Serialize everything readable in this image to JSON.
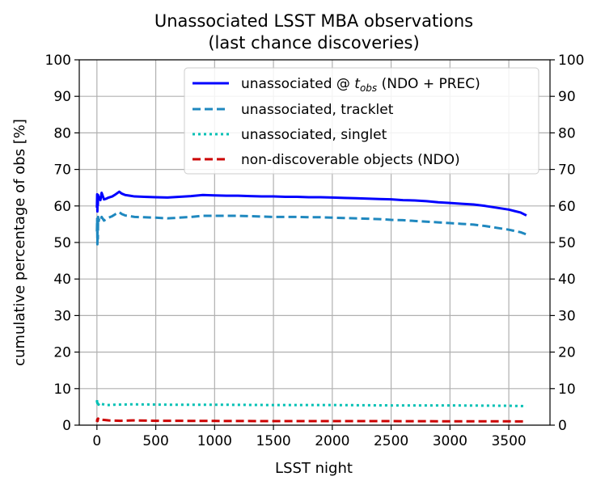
{
  "chart_data": {
    "type": "line",
    "title": "Unassociated LSST MBA observations",
    "subtitle": "(last chance discoveries)",
    "xlabel": "LSST night",
    "ylabel": "cumulative percentage of obs [%]",
    "xlim": [
      -150,
      3850
    ],
    "ylim": [
      0,
      100
    ],
    "xticks": [
      0,
      500,
      1000,
      1500,
      2000,
      2500,
      3000,
      3500
    ],
    "yticks": [
      0,
      10,
      20,
      30,
      40,
      50,
      60,
      70,
      80,
      90,
      100
    ],
    "grid": true,
    "legend_position": "top-right",
    "series": [
      {
        "name_parts": [
          "unassociated @ ",
          "t",
          "obs",
          " (NDO + PREC)"
        ],
        "style": "solid",
        "color": "#0000ff",
        "x": [
          0,
          2,
          4,
          6,
          8,
          10,
          14,
          20,
          30,
          40,
          60,
          80,
          100,
          130,
          160,
          190,
          210,
          240,
          280,
          320,
          400,
          500,
          600,
          700,
          800,
          900,
          1000,
          1100,
          1200,
          1300,
          1400,
          1500,
          1600,
          1700,
          1800,
          1900,
          2000,
          2100,
          2200,
          2300,
          2400,
          2500,
          2600,
          2700,
          2800,
          2900,
          3000,
          3100,
          3200,
          3300,
          3400,
          3500,
          3600,
          3650
        ],
        "y": [
          59.5,
          63.2,
          58.5,
          62.8,
          60.2,
          63.0,
          61.8,
          62.4,
          61.6,
          63.6,
          61.8,
          62.0,
          62.3,
          62.6,
          63.2,
          63.9,
          63.4,
          63.0,
          62.8,
          62.6,
          62.5,
          62.4,
          62.3,
          62.5,
          62.7,
          63.0,
          62.9,
          62.8,
          62.8,
          62.7,
          62.6,
          62.6,
          62.5,
          62.5,
          62.4,
          62.4,
          62.3,
          62.2,
          62.1,
          62.0,
          61.9,
          61.8,
          61.6,
          61.5,
          61.3,
          61.0,
          60.8,
          60.6,
          60.4,
          60.0,
          59.5,
          59.0,
          58.2,
          57.4
        ]
      },
      {
        "name": "unassociated, tracklet",
        "style": "dashed",
        "color": "#1f88bf",
        "x": [
          0,
          2,
          4,
          6,
          8,
          10,
          14,
          20,
          30,
          40,
          60,
          80,
          100,
          130,
          160,
          190,
          210,
          240,
          280,
          320,
          400,
          500,
          600,
          700,
          800,
          900,
          1000,
          1100,
          1200,
          1300,
          1400,
          1500,
          1600,
          1700,
          1800,
          1900,
          2000,
          2100,
          2200,
          2300,
          2400,
          2500,
          2600,
          2700,
          2800,
          2900,
          3000,
          3100,
          3200,
          3300,
          3400,
          3500,
          3600,
          3650
        ],
        "y": [
          53.0,
          56.5,
          49.5,
          55.5,
          51.0,
          57.0,
          55.8,
          56.2,
          55.8,
          57.0,
          56.0,
          56.4,
          56.8,
          57.2,
          57.8,
          58.3,
          57.8,
          57.4,
          57.2,
          57.0,
          56.9,
          56.8,
          56.6,
          56.8,
          57.0,
          57.3,
          57.3,
          57.3,
          57.3,
          57.2,
          57.1,
          57.0,
          57.0,
          57.0,
          56.9,
          56.9,
          56.8,
          56.7,
          56.6,
          56.5,
          56.4,
          56.2,
          56.1,
          55.9,
          55.7,
          55.5,
          55.3,
          55.1,
          54.9,
          54.5,
          54.0,
          53.5,
          52.8,
          52.2
        ]
      },
      {
        "name": "unassociated, singlet",
        "style": "dotted",
        "color": "#00c0b4",
        "x": [
          0,
          2,
          4,
          8,
          14,
          20,
          40,
          80,
          150,
          300,
          600,
          1000,
          1500,
          2000,
          2500,
          3000,
          3500,
          3650
        ],
        "y": [
          6.2,
          7.0,
          6.0,
          6.6,
          5.6,
          6.0,
          5.8,
          5.5,
          5.6,
          5.7,
          5.6,
          5.6,
          5.5,
          5.5,
          5.4,
          5.4,
          5.3,
          5.2
        ]
      },
      {
        "name": "non-discoverable objects (NDO)",
        "style": "dashed",
        "color": "#cc0000",
        "x": [
          0,
          3,
          6,
          10,
          20,
          40,
          100,
          200,
          300,
          500,
          1000,
          1500,
          2000,
          2500,
          3000,
          3500,
          3650
        ],
        "y": [
          0.9,
          1.6,
          1.1,
          1.8,
          1.4,
          1.5,
          1.3,
          1.2,
          1.3,
          1.2,
          1.15,
          1.1,
          1.1,
          1.1,
          1.05,
          1.05,
          1.0
        ]
      }
    ]
  }
}
